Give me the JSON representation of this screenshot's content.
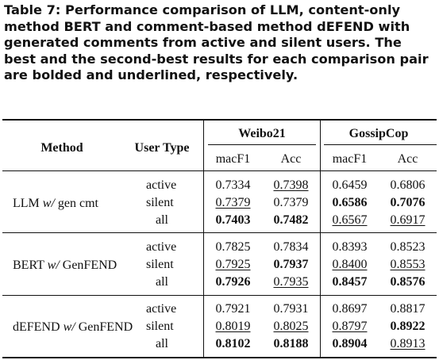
{
  "caption": "Table 7: Performance comparison of LLM, content-only method BERT and comment-based method dEFEND with generated comments from active and silent users. The best and the second-best results for each comparison pair are bolded and underlined, respectively.",
  "header": {
    "method": "Method",
    "user_type": "User Type",
    "dataset1": "Weibo21",
    "dataset2": "GossipCop",
    "macf1": "macF1",
    "acc": "Acc"
  },
  "groups": [
    {
      "method_pre": "LLM ",
      "method_it": "w/",
      "method_post": " gen cmt",
      "rows": [
        {
          "type": "active",
          "w_macf1": "0.7334",
          "w_acc": "0.7398",
          "g_macf1": "0.6459",
          "g_acc": "0.6806"
        },
        {
          "type": "silent",
          "w_macf1": "0.7379",
          "w_acc": "0.7379",
          "g_macf1": "0.6586",
          "g_acc": "0.7076"
        },
        {
          "type": "all",
          "w_macf1": "0.7403",
          "w_acc": "0.7482",
          "g_macf1": "0.6567",
          "g_acc": "0.6917"
        }
      ]
    },
    {
      "method_pre": "BERT ",
      "method_it": "w/",
      "method_post": " GenFEND",
      "rows": [
        {
          "type": "active",
          "w_macf1": "0.7825",
          "w_acc": "0.7834",
          "g_macf1": "0.8393",
          "g_acc": "0.8523"
        },
        {
          "type": "silent",
          "w_macf1": "0.7925",
          "w_acc": "0.7937",
          "g_macf1": "0.8400",
          "g_acc": "0.8553"
        },
        {
          "type": "all",
          "w_macf1": "0.7926",
          "w_acc": "0.7935",
          "g_macf1": "0.8457",
          "g_acc": "0.8576"
        }
      ]
    },
    {
      "method_pre": "dEFEND ",
      "method_it": "w/",
      "method_post": " GenFEND",
      "rows": [
        {
          "type": "active",
          "w_macf1": "0.7921",
          "w_acc": "0.7931",
          "g_macf1": "0.8697",
          "g_acc": "0.8817"
        },
        {
          "type": "silent",
          "w_macf1": "0.8019",
          "w_acc": "0.8025",
          "g_macf1": "0.8797",
          "g_acc": "0.8922"
        },
        {
          "type": "all",
          "w_macf1": "0.8102",
          "w_acc": "0.8188",
          "g_macf1": "0.8904",
          "g_acc": "0.8913"
        }
      ]
    }
  ]
}
